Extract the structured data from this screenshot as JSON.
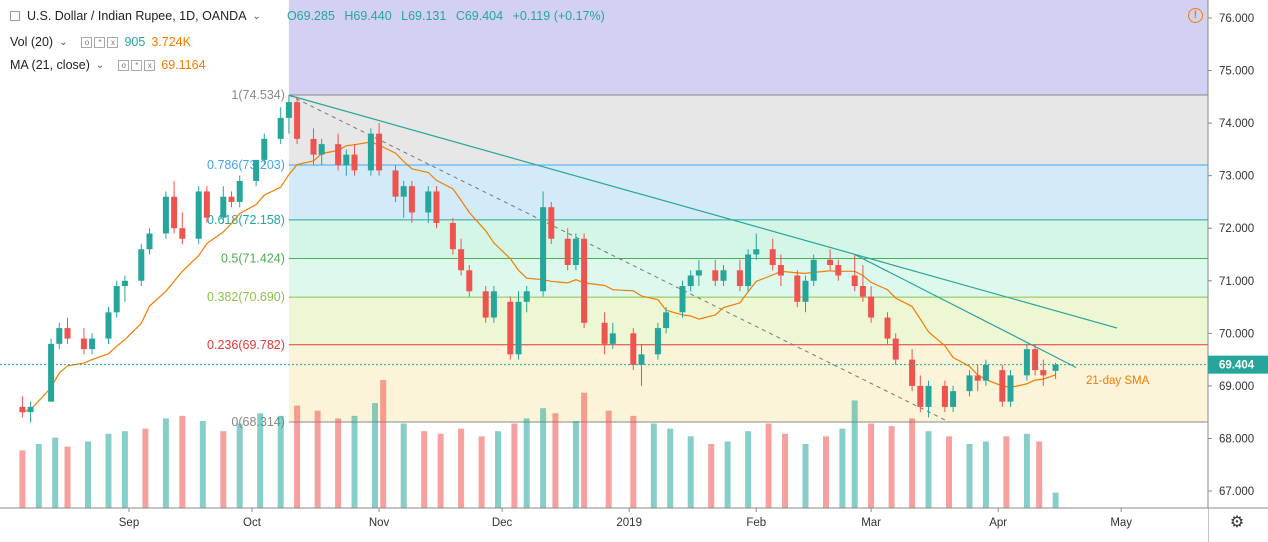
{
  "legend": {
    "symbol": "U.S. Dollar / Indian Rupee, 1D, OANDA",
    "open": "O69.285",
    "high": "H69.440",
    "low": "L69.131",
    "close": "C69.404",
    "change": "+0.119 (+0.17%)",
    "vol_label": "Vol (20)",
    "vol_value1": "905",
    "vol_value2": "3.724K",
    "ma_label": "MA (21, close)",
    "ma_value": "69.1164"
  },
  "colors": {
    "up": "#26a69a",
    "down": "#ef5350",
    "ma": "#f57c00",
    "trendline": "#26a69a"
  },
  "chart_data": {
    "type": "candlestick",
    "y_axis": {
      "min": 66.8,
      "max": 76.3,
      "ticks": [
        "76.000",
        "75.000",
        "74.000",
        "73.000",
        "72.000",
        "71.000",
        "70.000",
        "69.000",
        "68.000",
        "67.000"
      ]
    },
    "x_axis_labels": [
      "Sep",
      "Oct",
      "Nov",
      "Dec",
      "2019",
      "Feb",
      "Mar",
      "Apr",
      "May"
    ],
    "last_price": "69.404",
    "fib_levels": [
      {
        "ratio": 1,
        "price": 74.534,
        "label": "1(74.534)"
      },
      {
        "ratio": 0.786,
        "price": 73.203,
        "label": "0.786(73.203)"
      },
      {
        "ratio": 0.618,
        "price": 72.158,
        "label": "0.618(72.158)"
      },
      {
        "ratio": 0.5,
        "price": 71.424,
        "label": "0.5(71.424)"
      },
      {
        "ratio": 0.382,
        "price": 70.69,
        "label": "0.382(70.690)"
      },
      {
        "ratio": 0.236,
        "price": 69.782,
        "label": "0.236(69.782)"
      },
      {
        "ratio": 0,
        "price": 68.314,
        "label": "0(68.314)"
      }
    ],
    "annotation": "21-day SMA",
    "trendlines": [
      {
        "from": [
          "2018-10-10",
          74.53
        ],
        "to": [
          "2019-04-30",
          70.1
        ]
      },
      {
        "from": [
          "2019-02-25",
          71.5
        ],
        "to": [
          "2019-04-20",
          69.35
        ]
      }
    ],
    "fib_diagonal": {
      "from": [
        "2018-10-10",
        74.534
      ],
      "to": [
        "2019-03-20",
        68.314
      ]
    },
    "candles": [
      {
        "d": "2018-08-06",
        "o": 68.6,
        "h": 68.8,
        "l": 68.4,
        "c": 68.5
      },
      {
        "d": "2018-08-08",
        "o": 68.5,
        "h": 68.7,
        "l": 68.3,
        "c": 68.6
      },
      {
        "d": "2018-08-13",
        "o": 68.7,
        "h": 69.9,
        "l": 68.7,
        "c": 69.8
      },
      {
        "d": "2018-08-15",
        "o": 69.8,
        "h": 70.2,
        "l": 69.7,
        "c": 70.1
      },
      {
        "d": "2018-08-17",
        "o": 70.1,
        "h": 70.3,
        "l": 69.8,
        "c": 69.9
      },
      {
        "d": "2018-08-21",
        "o": 69.9,
        "h": 70.1,
        "l": 69.6,
        "c": 69.7
      },
      {
        "d": "2018-08-23",
        "o": 69.7,
        "h": 70.0,
        "l": 69.6,
        "c": 69.9
      },
      {
        "d": "2018-08-27",
        "o": 69.9,
        "h": 70.5,
        "l": 69.8,
        "c": 70.4
      },
      {
        "d": "2018-08-29",
        "o": 70.4,
        "h": 71.0,
        "l": 70.3,
        "c": 70.9
      },
      {
        "d": "2018-08-31",
        "o": 70.9,
        "h": 71.1,
        "l": 70.6,
        "c": 71.0
      },
      {
        "d": "2018-09-04",
        "o": 71.0,
        "h": 71.7,
        "l": 70.9,
        "c": 71.6
      },
      {
        "d": "2018-09-06",
        "o": 71.6,
        "h": 72.0,
        "l": 71.5,
        "c": 71.9
      },
      {
        "d": "2018-09-10",
        "o": 71.9,
        "h": 72.7,
        "l": 71.8,
        "c": 72.6
      },
      {
        "d": "2018-09-12",
        "o": 72.6,
        "h": 72.9,
        "l": 71.9,
        "c": 72.0
      },
      {
        "d": "2018-09-14",
        "o": 72.0,
        "h": 72.3,
        "l": 71.7,
        "c": 71.8
      },
      {
        "d": "2018-09-18",
        "o": 71.8,
        "h": 72.8,
        "l": 71.7,
        "c": 72.7
      },
      {
        "d": "2018-09-20",
        "o": 72.7,
        "h": 72.8,
        "l": 72.1,
        "c": 72.2
      },
      {
        "d": "2018-09-24",
        "o": 72.2,
        "h": 72.8,
        "l": 72.1,
        "c": 72.6
      },
      {
        "d": "2018-09-26",
        "o": 72.6,
        "h": 72.7,
        "l": 72.4,
        "c": 72.5
      },
      {
        "d": "2018-09-28",
        "o": 72.5,
        "h": 73.0,
        "l": 72.4,
        "c": 72.9
      },
      {
        "d": "2018-10-02",
        "o": 72.9,
        "h": 73.3,
        "l": 72.8,
        "c": 73.3
      },
      {
        "d": "2018-10-04",
        "o": 73.3,
        "h": 73.8,
        "l": 73.2,
        "c": 73.7
      },
      {
        "d": "2018-10-08",
        "o": 73.7,
        "h": 74.3,
        "l": 73.6,
        "c": 74.1
      },
      {
        "d": "2018-10-10",
        "o": 74.1,
        "h": 74.53,
        "l": 73.8,
        "c": 74.4
      },
      {
        "d": "2018-10-12",
        "o": 74.4,
        "h": 74.5,
        "l": 73.6,
        "c": 73.7
      },
      {
        "d": "2018-10-16",
        "o": 73.7,
        "h": 73.9,
        "l": 73.2,
        "c": 73.4
      },
      {
        "d": "2018-10-18",
        "o": 73.4,
        "h": 73.7,
        "l": 73.2,
        "c": 73.6
      },
      {
        "d": "2018-10-22",
        "o": 73.6,
        "h": 73.8,
        "l": 73.1,
        "c": 73.2
      },
      {
        "d": "2018-10-24",
        "o": 73.2,
        "h": 73.5,
        "l": 73.0,
        "c": 73.4
      },
      {
        "d": "2018-10-26",
        "o": 73.4,
        "h": 73.6,
        "l": 73.0,
        "c": 73.1
      },
      {
        "d": "2018-10-30",
        "o": 73.1,
        "h": 73.9,
        "l": 73.0,
        "c": 73.8
      },
      {
        "d": "2018-11-01",
        "o": 73.8,
        "h": 74.0,
        "l": 73.0,
        "c": 73.1
      },
      {
        "d": "2018-11-05",
        "o": 73.1,
        "h": 73.2,
        "l": 72.5,
        "c": 72.6
      },
      {
        "d": "2018-11-07",
        "o": 72.6,
        "h": 72.9,
        "l": 72.2,
        "c": 72.8
      },
      {
        "d": "2018-11-09",
        "o": 72.8,
        "h": 72.9,
        "l": 72.1,
        "c": 72.3
      },
      {
        "d": "2018-11-13",
        "o": 72.3,
        "h": 72.8,
        "l": 72.1,
        "c": 72.7
      },
      {
        "d": "2018-11-15",
        "o": 72.7,
        "h": 72.8,
        "l": 72.0,
        "c": 72.1
      },
      {
        "d": "2018-11-19",
        "o": 72.1,
        "h": 72.2,
        "l": 71.5,
        "c": 71.6
      },
      {
        "d": "2018-11-21",
        "o": 71.6,
        "h": 71.8,
        "l": 71.1,
        "c": 71.2
      },
      {
        "d": "2018-11-23",
        "o": 71.2,
        "h": 71.3,
        "l": 70.7,
        "c": 70.8
      },
      {
        "d": "2018-11-27",
        "o": 70.8,
        "h": 70.9,
        "l": 70.2,
        "c": 70.3
      },
      {
        "d": "2018-11-29",
        "o": 70.3,
        "h": 70.9,
        "l": 70.2,
        "c": 70.8
      },
      {
        "d": "2018-12-03",
        "o": 70.6,
        "h": 70.7,
        "l": 69.5,
        "c": 69.6
      },
      {
        "d": "2018-12-05",
        "o": 69.6,
        "h": 70.8,
        "l": 69.5,
        "c": 70.6
      },
      {
        "d": "2018-12-07",
        "o": 70.6,
        "h": 70.9,
        "l": 70.4,
        "c": 70.8
      },
      {
        "d": "2018-12-11",
        "o": 70.8,
        "h": 72.7,
        "l": 70.7,
        "c": 72.4
      },
      {
        "d": "2018-12-13",
        "o": 72.4,
        "h": 72.5,
        "l": 71.7,
        "c": 71.8
      },
      {
        "d": "2018-12-17",
        "o": 71.8,
        "h": 72.0,
        "l": 71.2,
        "c": 71.3
      },
      {
        "d": "2018-12-19",
        "o": 71.3,
        "h": 71.9,
        "l": 71.2,
        "c": 71.8
      },
      {
        "d": "2018-12-21",
        "o": 71.8,
        "h": 71.9,
        "l": 70.1,
        "c": 70.2
      },
      {
        "d": "2018-12-26",
        "o": 70.2,
        "h": 70.4,
        "l": 69.6,
        "c": 69.8
      },
      {
        "d": "2018-12-28",
        "o": 69.8,
        "h": 70.2,
        "l": 69.7,
        "c": 70.0
      },
      {
        "d": "2019-01-02",
        "o": 70.0,
        "h": 70.1,
        "l": 69.3,
        "c": 69.4
      },
      {
        "d": "2019-01-04",
        "o": 69.4,
        "h": 69.8,
        "l": 69.0,
        "c": 69.6
      },
      {
        "d": "2019-01-08",
        "o": 69.6,
        "h": 70.2,
        "l": 69.5,
        "c": 70.1
      },
      {
        "d": "2019-01-10",
        "o": 70.1,
        "h": 70.5,
        "l": 70.0,
        "c": 70.4
      },
      {
        "d": "2019-01-14",
        "o": 70.4,
        "h": 71.0,
        "l": 70.3,
        "c": 70.9
      },
      {
        "d": "2019-01-16",
        "o": 70.9,
        "h": 71.2,
        "l": 70.8,
        "c": 71.1
      },
      {
        "d": "2019-01-18",
        "o": 71.1,
        "h": 71.4,
        "l": 70.9,
        "c": 71.2
      },
      {
        "d": "2019-01-22",
        "o": 71.2,
        "h": 71.4,
        "l": 70.9,
        "c": 71.0
      },
      {
        "d": "2019-01-24",
        "o": 71.0,
        "h": 71.3,
        "l": 70.9,
        "c": 71.2
      },
      {
        "d": "2019-01-28",
        "o": 71.2,
        "h": 71.4,
        "l": 70.8,
        "c": 70.9
      },
      {
        "d": "2019-01-30",
        "o": 70.9,
        "h": 71.6,
        "l": 70.8,
        "c": 71.5
      },
      {
        "d": "2019-02-01",
        "o": 71.5,
        "h": 71.9,
        "l": 71.4,
        "c": 71.6
      },
      {
        "d": "2019-02-05",
        "o": 71.6,
        "h": 71.8,
        "l": 71.2,
        "c": 71.3
      },
      {
        "d": "2019-02-07",
        "o": 71.3,
        "h": 71.5,
        "l": 70.9,
        "c": 71.1
      },
      {
        "d": "2019-02-11",
        "o": 71.1,
        "h": 71.2,
        "l": 70.5,
        "c": 70.6
      },
      {
        "d": "2019-02-13",
        "o": 70.6,
        "h": 71.1,
        "l": 70.4,
        "c": 71.0
      },
      {
        "d": "2019-02-15",
        "o": 71.0,
        "h": 71.5,
        "l": 70.9,
        "c": 71.4
      },
      {
        "d": "2019-02-19",
        "o": 71.4,
        "h": 71.6,
        "l": 71.2,
        "c": 71.3
      },
      {
        "d": "2019-02-21",
        "o": 71.3,
        "h": 71.4,
        "l": 71.0,
        "c": 71.1
      },
      {
        "d": "2019-02-25",
        "o": 71.1,
        "h": 71.5,
        "l": 70.8,
        "c": 70.9
      },
      {
        "d": "2019-02-27",
        "o": 70.9,
        "h": 71.3,
        "l": 70.6,
        "c": 70.7
      },
      {
        "d": "2019-03-01",
        "o": 70.7,
        "h": 70.9,
        "l": 70.2,
        "c": 70.3
      },
      {
        "d": "2019-03-05",
        "o": 70.3,
        "h": 70.4,
        "l": 69.8,
        "c": 69.9
      },
      {
        "d": "2019-03-07",
        "o": 69.9,
        "h": 70.0,
        "l": 69.4,
        "c": 69.5
      },
      {
        "d": "2019-03-11",
        "o": 69.5,
        "h": 69.7,
        "l": 68.9,
        "c": 69.0
      },
      {
        "d": "2019-03-13",
        "o": 69.0,
        "h": 69.2,
        "l": 68.5,
        "c": 68.6
      },
      {
        "d": "2019-03-15",
        "o": 68.6,
        "h": 69.1,
        "l": 68.4,
        "c": 69.0
      },
      {
        "d": "2019-03-19",
        "o": 69.0,
        "h": 69.1,
        "l": 68.5,
        "c": 68.6
      },
      {
        "d": "2019-03-21",
        "o": 68.6,
        "h": 69.0,
        "l": 68.5,
        "c": 68.9
      },
      {
        "d": "2019-03-25",
        "o": 68.9,
        "h": 69.3,
        "l": 68.8,
        "c": 69.2
      },
      {
        "d": "2019-03-27",
        "o": 69.2,
        "h": 69.4,
        "l": 68.9,
        "c": 69.1
      },
      {
        "d": "2019-03-29",
        "o": 69.1,
        "h": 69.5,
        "l": 69.0,
        "c": 69.4
      },
      {
        "d": "2019-04-02",
        "o": 69.3,
        "h": 69.4,
        "l": 68.6,
        "c": 68.7
      },
      {
        "d": "2019-04-04",
        "o": 68.7,
        "h": 69.3,
        "l": 68.6,
        "c": 69.2
      },
      {
        "d": "2019-04-08",
        "o": 69.2,
        "h": 69.8,
        "l": 69.1,
        "c": 69.7
      },
      {
        "d": "2019-04-10",
        "o": 69.7,
        "h": 69.8,
        "l": 69.2,
        "c": 69.3
      },
      {
        "d": "2019-04-12",
        "o": 69.3,
        "h": 69.5,
        "l": 69.0,
        "c": 69.2
      },
      {
        "d": "2019-04-15",
        "o": 69.285,
        "h": 69.44,
        "l": 69.131,
        "c": 69.404
      }
    ],
    "volume": [
      {
        "d": "2018-08-06",
        "v": 0.45,
        "up": false
      },
      {
        "d": "2018-08-10",
        "v": 0.5,
        "up": true
      },
      {
        "d": "2018-08-14",
        "v": 0.55,
        "up": true
      },
      {
        "d": "2018-08-17",
        "v": 0.48,
        "up": false
      },
      {
        "d": "2018-08-22",
        "v": 0.52,
        "up": true
      },
      {
        "d": "2018-08-27",
        "v": 0.58,
        "up": true
      },
      {
        "d": "2018-08-31",
        "v": 0.6,
        "up": true
      },
      {
        "d": "2018-09-05",
        "v": 0.62,
        "up": false
      },
      {
        "d": "2018-09-10",
        "v": 0.7,
        "up": true
      },
      {
        "d": "2018-09-14",
        "v": 0.72,
        "up": false
      },
      {
        "d": "2018-09-19",
        "v": 0.68,
        "up": true
      },
      {
        "d": "2018-09-24",
        "v": 0.6,
        "up": false
      },
      {
        "d": "2018-09-28",
        "v": 0.66,
        "up": true
      },
      {
        "d": "2018-10-03",
        "v": 0.74,
        "up": true
      },
      {
        "d": "2018-10-08",
        "v": 0.72,
        "up": true
      },
      {
        "d": "2018-10-12",
        "v": 0.8,
        "up": false
      },
      {
        "d": "2018-10-17",
        "v": 0.76,
        "up": false
      },
      {
        "d": "2018-10-22",
        "v": 0.7,
        "up": false
      },
      {
        "d": "2018-10-26",
        "v": 0.72,
        "up": true
      },
      {
        "d": "2018-10-31",
        "v": 0.82,
        "up": true
      },
      {
        "d": "2018-11-02",
        "v": 1.0,
        "up": false
      },
      {
        "d": "2018-11-07",
        "v": 0.66,
        "up": true
      },
      {
        "d": "2018-11-12",
        "v": 0.6,
        "up": false
      },
      {
        "d": "2018-11-16",
        "v": 0.58,
        "up": false
      },
      {
        "d": "2018-11-21",
        "v": 0.62,
        "up": false
      },
      {
        "d": "2018-11-26",
        "v": 0.56,
        "up": false
      },
      {
        "d": "2018-11-30",
        "v": 0.6,
        "up": true
      },
      {
        "d": "2018-12-04",
        "v": 0.66,
        "up": false
      },
      {
        "d": "2018-12-07",
        "v": 0.7,
        "up": true
      },
      {
        "d": "2018-12-11",
        "v": 0.78,
        "up": true
      },
      {
        "d": "2018-12-14",
        "v": 0.74,
        "up": false
      },
      {
        "d": "2018-12-19",
        "v": 0.68,
        "up": true
      },
      {
        "d": "2018-12-21",
        "v": 0.9,
        "up": false
      },
      {
        "d": "2018-12-27",
        "v": 0.76,
        "up": false
      },
      {
        "d": "2019-01-02",
        "v": 0.72,
        "up": false
      },
      {
        "d": "2019-01-07",
        "v": 0.66,
        "up": true
      },
      {
        "d": "2019-01-11",
        "v": 0.62,
        "up": true
      },
      {
        "d": "2019-01-16",
        "v": 0.56,
        "up": true
      },
      {
        "d": "2019-01-21",
        "v": 0.5,
        "up": false
      },
      {
        "d": "2019-01-25",
        "v": 0.52,
        "up": true
      },
      {
        "d": "2019-01-30",
        "v": 0.6,
        "up": true
      },
      {
        "d": "2019-02-04",
        "v": 0.66,
        "up": false
      },
      {
        "d": "2019-02-08",
        "v": 0.58,
        "up": false
      },
      {
        "d": "2019-02-13",
        "v": 0.5,
        "up": true
      },
      {
        "d": "2019-02-18",
        "v": 0.56,
        "up": false
      },
      {
        "d": "2019-02-22",
        "v": 0.62,
        "up": true
      },
      {
        "d": "2019-02-25",
        "v": 0.84,
        "up": true
      },
      {
        "d": "2019-03-01",
        "v": 0.66,
        "up": false
      },
      {
        "d": "2019-03-06",
        "v": 0.64,
        "up": false
      },
      {
        "d": "2019-03-11",
        "v": 0.7,
        "up": false
      },
      {
        "d": "2019-03-15",
        "v": 0.6,
        "up": true
      },
      {
        "d": "2019-03-20",
        "v": 0.56,
        "up": false
      },
      {
        "d": "2019-03-25",
        "v": 0.5,
        "up": true
      },
      {
        "d": "2019-03-29",
        "v": 0.52,
        "up": true
      },
      {
        "d": "2019-04-03",
        "v": 0.56,
        "up": false
      },
      {
        "d": "2019-04-08",
        "v": 0.58,
        "up": true
      },
      {
        "d": "2019-04-11",
        "v": 0.52,
        "up": false
      },
      {
        "d": "2019-04-15",
        "v": 0.12,
        "up": true
      }
    ]
  }
}
